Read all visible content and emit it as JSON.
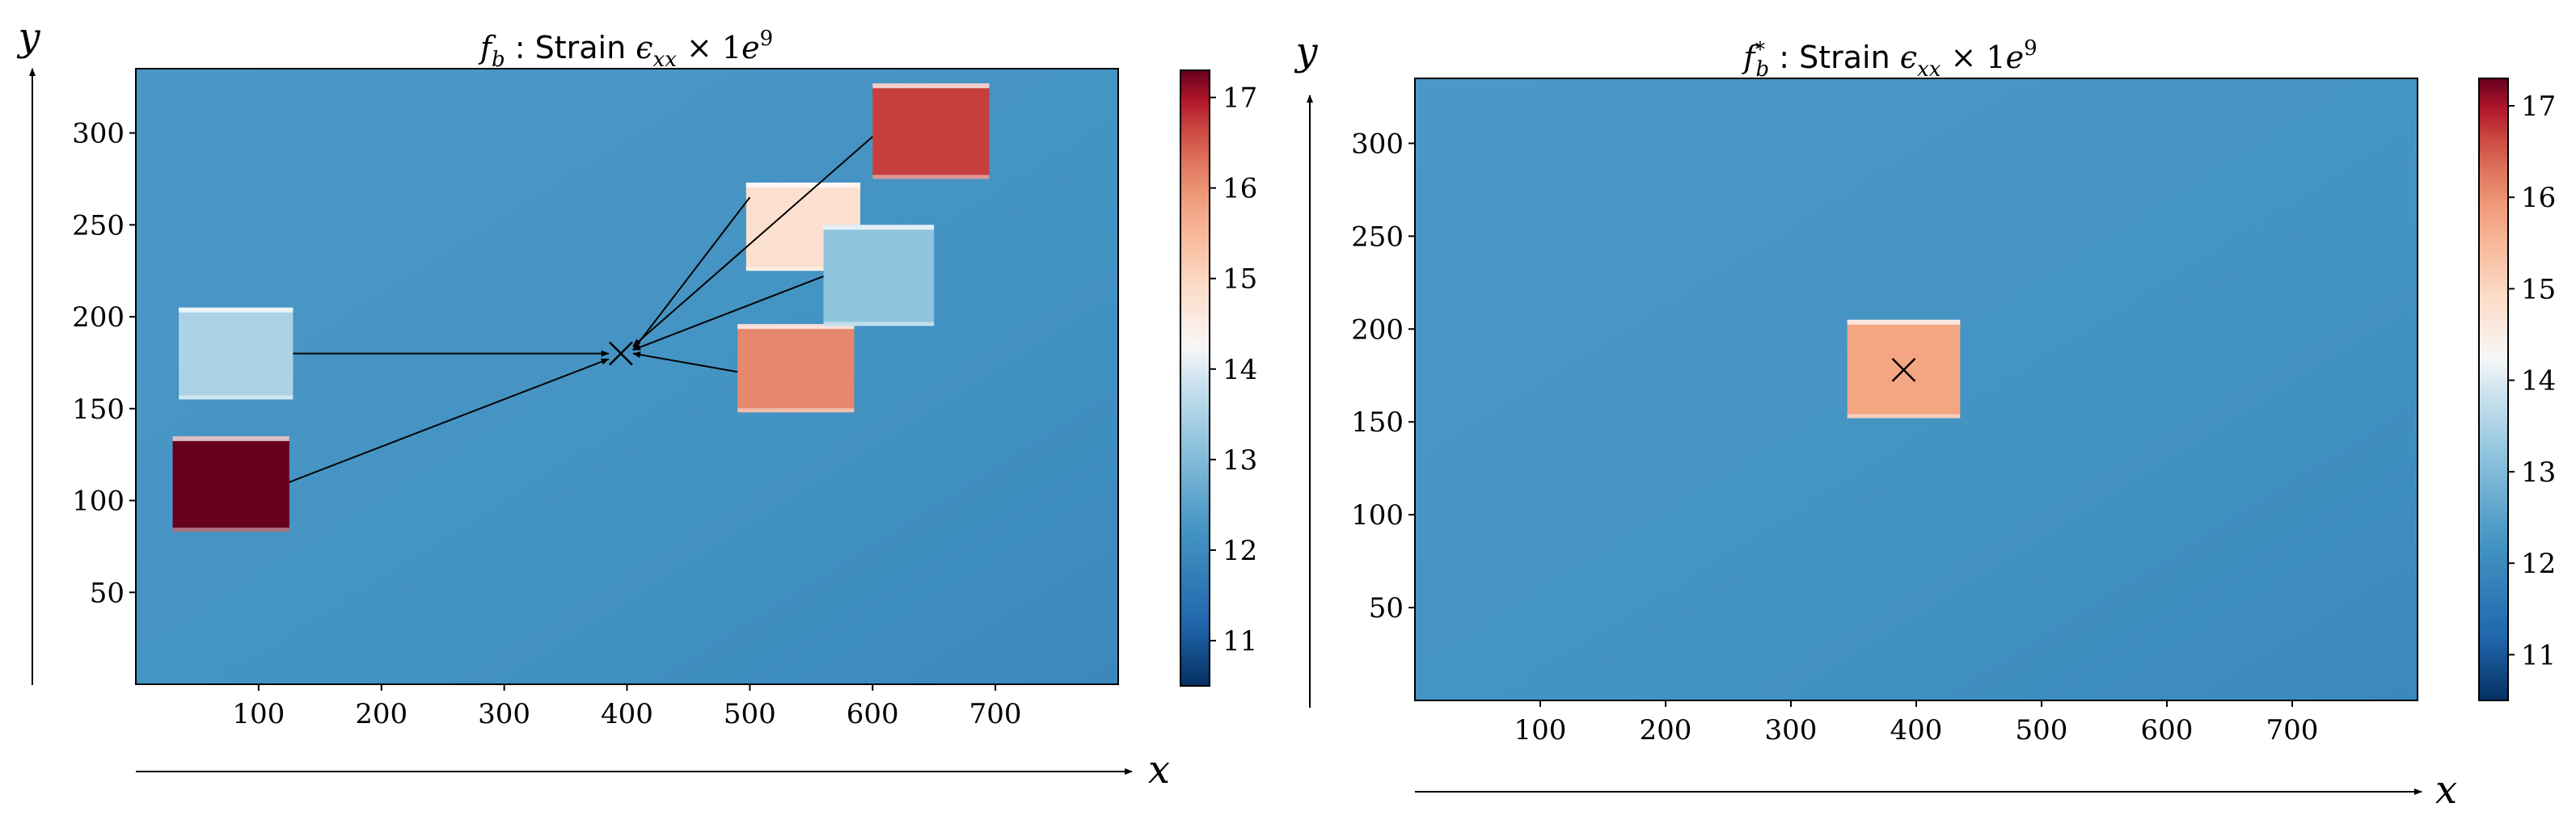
{
  "chart_data": [
    {
      "type": "heatmap",
      "title": {
        "func": "f",
        "func_sub": "b",
        "func_sup": "",
        "sep": " : Strain ",
        "eps": "ϵ",
        "eps_sub": "xx",
        "times": " × 1",
        "exp_base": "e",
        "exp": "9"
      },
      "xlabel": "x",
      "ylabel": "y",
      "xlim": [
        0,
        800
      ],
      "ylim": [
        0,
        335
      ],
      "xticks": [
        100,
        200,
        300,
        400,
        500,
        600,
        700
      ],
      "yticks": [
        50,
        100,
        150,
        200,
        250,
        300
      ],
      "background_value": 12.2,
      "colorbar": {
        "min": 10.5,
        "max": 17.3,
        "ticks": [
          11,
          12,
          13,
          14,
          15,
          16,
          17
        ]
      },
      "patches": [
        {
          "x": [
            30,
            125
          ],
          "y": [
            83,
            135
          ],
          "value": 17.3
        },
        {
          "x": [
            35,
            128
          ],
          "y": [
            155,
            205
          ],
          "value": 13.5
        },
        {
          "x": [
            490,
            585
          ],
          "y": [
            148,
            196
          ],
          "value": 16.1
        },
        {
          "x": [
            497,
            590
          ],
          "y": [
            225,
            273
          ],
          "value": 14.8
        },
        {
          "x": [
            560,
            650
          ],
          "y": [
            195,
            250
          ],
          "value": 13.2
        },
        {
          "x": [
            600,
            695
          ],
          "y": [
            275,
            327
          ],
          "value": 16.7
        }
      ],
      "target": {
        "x": 395,
        "y": 180
      },
      "arrows": [
        {
          "from": [
            128,
            180
          ],
          "to": [
            385,
            180
          ]
        },
        {
          "from": [
            125,
            110
          ],
          "to": [
            385,
            177
          ]
        },
        {
          "from": [
            490,
            170
          ],
          "to": [
            405,
            180
          ]
        },
        {
          "from": [
            500,
            265
          ],
          "to": [
            405,
            182
          ]
        },
        {
          "from": [
            560,
            222
          ],
          "to": [
            405,
            182
          ]
        },
        {
          "from": [
            600,
            298
          ],
          "to": [
            405,
            184
          ]
        }
      ]
    },
    {
      "type": "heatmap",
      "title": {
        "func": "f",
        "func_sub": "b",
        "func_sup": "*",
        "sep": " : Strain ",
        "eps": "ϵ",
        "eps_sub": "xx",
        "times": " × 1",
        "exp_base": "e",
        "exp": "9"
      },
      "xlabel": "x",
      "ylabel": "y",
      "xlim": [
        0,
        800
      ],
      "ylim": [
        0,
        335
      ],
      "xticks": [
        100,
        200,
        300,
        400,
        500,
        600,
        700
      ],
      "yticks": [
        50,
        100,
        150,
        200,
        250,
        300
      ],
      "background_value": 12.2,
      "colorbar": {
        "min": 10.5,
        "max": 17.3,
        "ticks": [
          11,
          12,
          13,
          14,
          15,
          16,
          17
        ]
      },
      "patches": [
        {
          "x": [
            345,
            435
          ],
          "y": [
            152,
            205
          ],
          "value": 15.8
        }
      ],
      "target": {
        "x": 390,
        "y": 178
      },
      "arrows": []
    }
  ],
  "colors": {
    "background_field": "#5aa2cf",
    "axis": "#000000"
  }
}
